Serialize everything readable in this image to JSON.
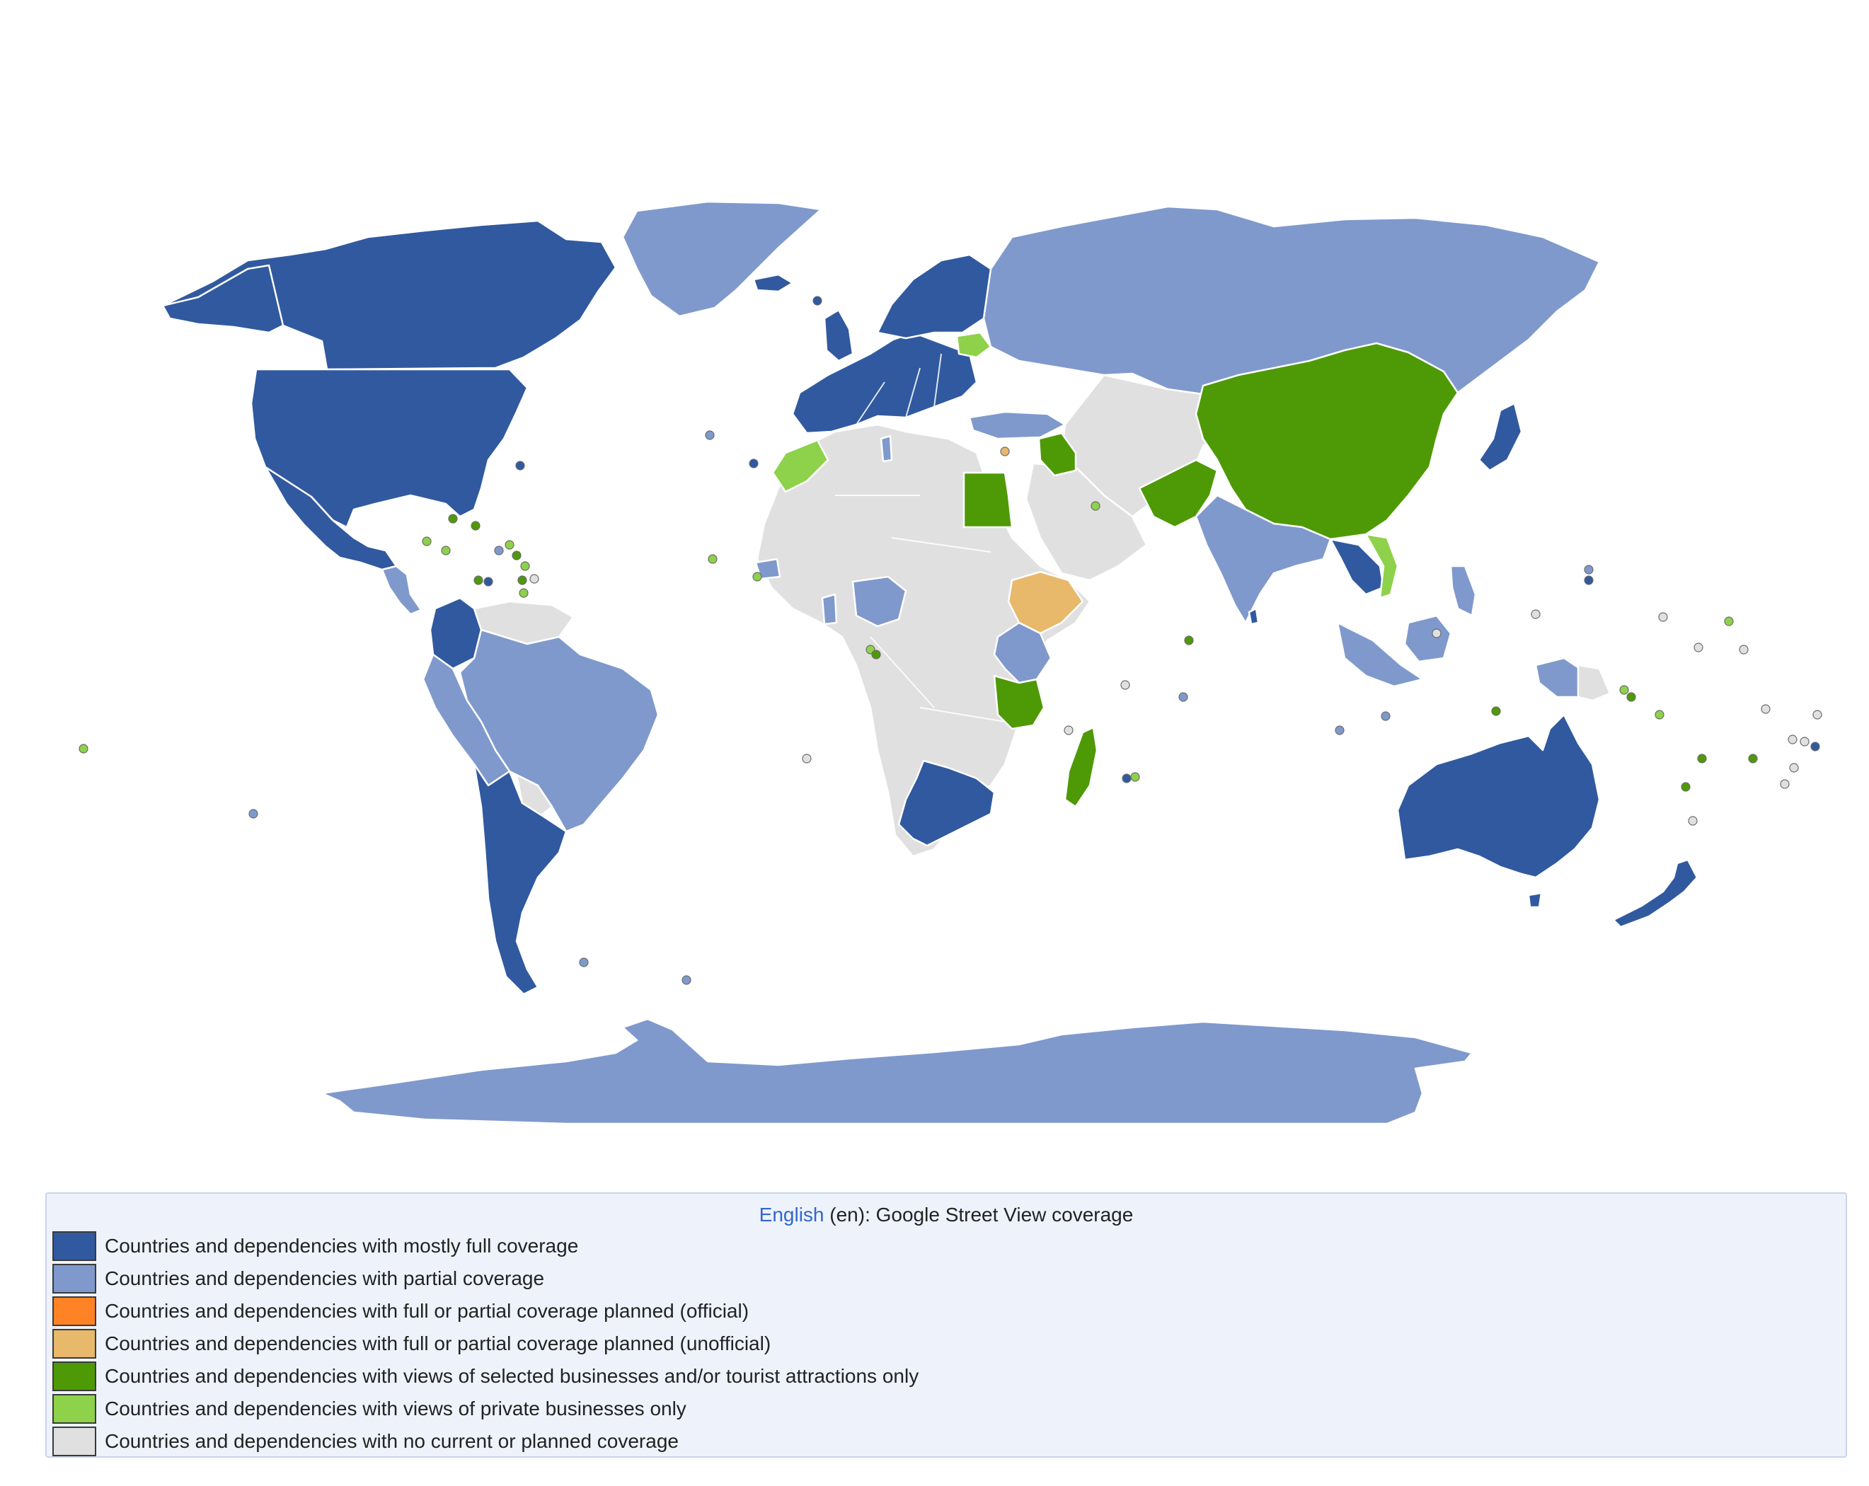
{
  "map": {
    "colors": {
      "mostly_full": "#30599f",
      "partial": "#7f99cc",
      "planned_official": "#ff8325",
      "planned_unofficial": "#e8b86b",
      "selected_businesses": "#4e9a06",
      "private_businesses": "#8ed14a",
      "none": "#e0e0e0"
    },
    "countries": {
      "canada": "mostly_full",
      "united_states": "mostly_full",
      "mexico": "mostly_full",
      "greenland": "partial",
      "colombia": "mostly_full",
      "brazil": "partial",
      "argentina": "mostly_full",
      "russia": "partial",
      "china": "selected_businesses",
      "india": "partial",
      "pakistan": "selected_businesses",
      "egypt": "selected_businesses",
      "ethiopia": "planned_unofficial",
      "tanzania": "selected_businesses",
      "madagascar": "selected_businesses",
      "south_africa": "mostly_full",
      "australia": "mostly_full",
      "new_zealand": "mostly_full",
      "antarctica": "partial",
      "thailand": "mostly_full",
      "japan": "mostly_full",
      "nigeria": "partial",
      "kenya": "partial"
    }
  },
  "legend": {
    "title_link": "English",
    "title_rest": " (en): Google Street View coverage",
    "items": [
      {
        "key": "mostly_full",
        "label": "Countries and dependencies with mostly full coverage"
      },
      {
        "key": "partial",
        "label": "Countries and dependencies with partial coverage"
      },
      {
        "key": "planned_official",
        "label": "Countries and dependencies with full or partial coverage planned (official)"
      },
      {
        "key": "planned_unofficial",
        "label": "Countries and dependencies with full or partial coverage planned (unofficial)"
      },
      {
        "key": "selected_businesses",
        "label": "Countries and dependencies with views of selected businesses and/or tourist attractions only"
      },
      {
        "key": "private_businesses",
        "label": "Countries and dependencies with views of private businesses only"
      },
      {
        "key": "none",
        "label": "Countries and dependencies with no current or planned coverage"
      }
    ]
  }
}
